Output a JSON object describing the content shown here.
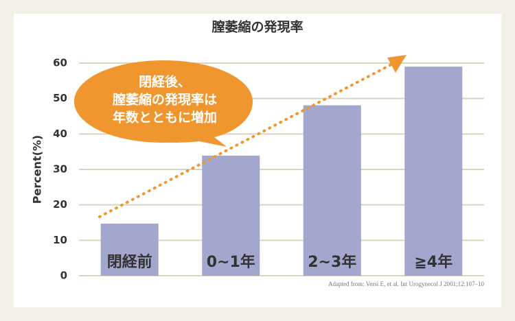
{
  "chart_data": {
    "type": "bar",
    "title": "膣萎縮の発現率",
    "y_label": "Percent(%)",
    "categories": [
      "閉経前",
      "0~1年",
      "2~3年",
      "≧4年"
    ],
    "values": [
      14.7,
      33.9,
      48.1,
      59.0
    ],
    "color": "#a4a7cd",
    "ylim": [
      0,
      60
    ],
    "yticks": [
      0,
      10,
      20,
      30,
      40,
      50,
      60
    ],
    "grid": true,
    "annotation": {
      "lines": [
        "閉経後、",
        "膣萎縮の発現率は",
        "年数とともに増加"
      ],
      "color": "#f0962e"
    },
    "source": "Adapted from: Versi E, et al. Int Urogynecol J 2001;12:107–10"
  }
}
